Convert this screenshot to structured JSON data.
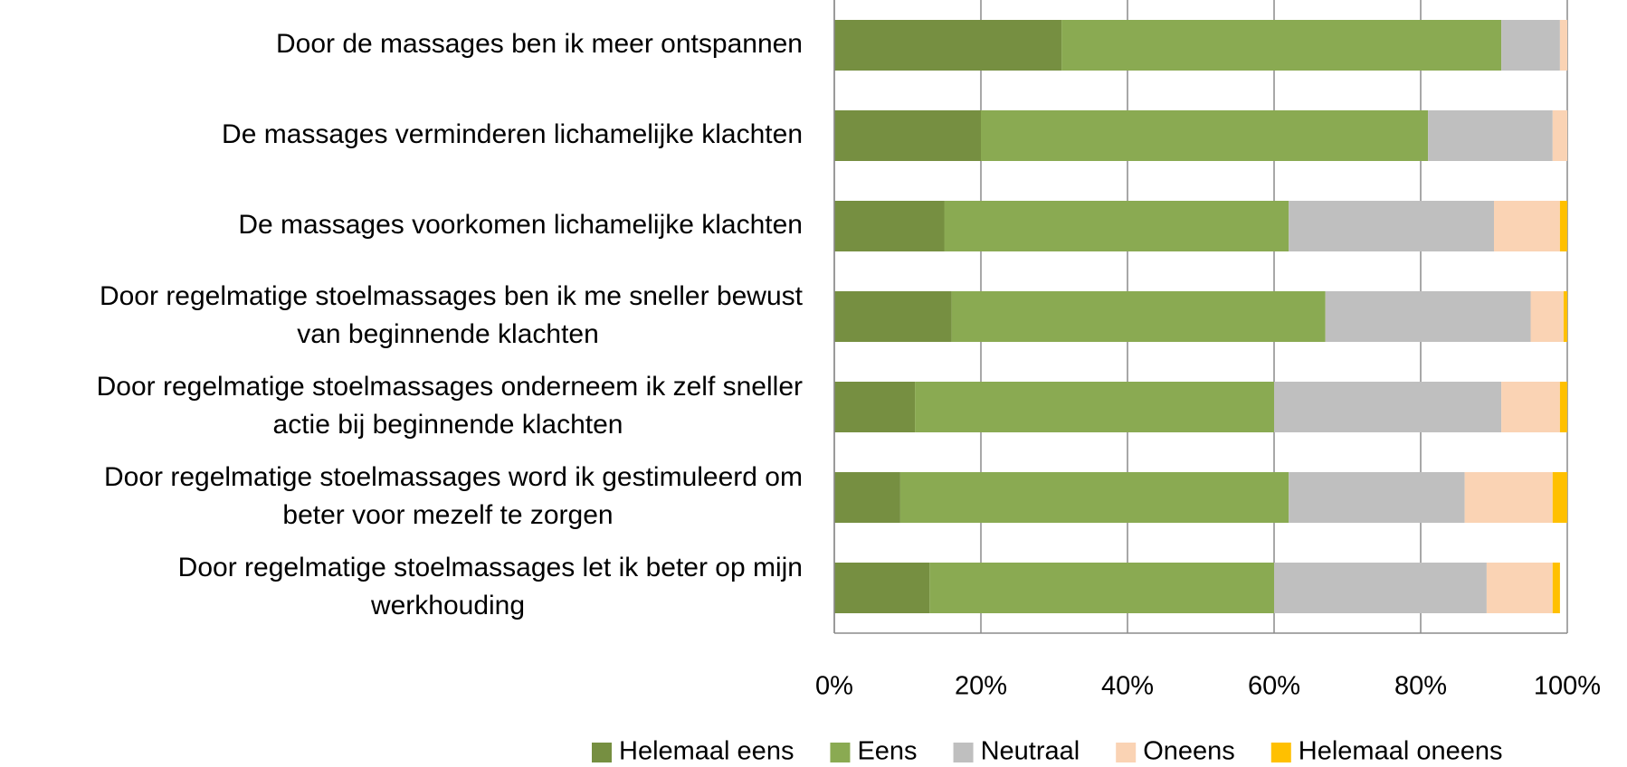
{
  "chart_data": {
    "type": "stacked-barh",
    "categories": [
      "Door de massages ben ik meer ontspannen",
      "De massages verminderen lichamelijke klachten",
      "De massages voorkomen lichamelijke klachten",
      "Door regelmatige stoelmassages ben ik me sneller bewust\nvan beginnende klachten",
      "Door regelmatige stoelmassages onderneem ik zelf sneller\nactie bij beginnende klachten",
      "Door regelmatige stoelmassages word ik gestimuleerd om\nbeter voor mezelf te zorgen",
      "Door regelmatige stoelmassages let ik beter op mijn\nwerkhouding"
    ],
    "series": [
      {
        "name": "Helemaal eens",
        "color": "#768f41",
        "values": [
          31,
          20,
          15,
          16,
          11,
          9,
          13
        ]
      },
      {
        "name": "Eens",
        "color": "#8aaa52",
        "values": [
          60,
          61,
          47,
          51,
          49,
          53,
          47
        ]
      },
      {
        "name": "Neutraal",
        "color": "#bfbfbf",
        "values": [
          8,
          17,
          28,
          28,
          31,
          24,
          29
        ]
      },
      {
        "name": "Oneens",
        "color": "#fad3b4",
        "values": [
          1,
          2,
          9,
          4.5,
          8,
          12,
          9
        ]
      },
      {
        "name": "Helemaal oneens",
        "color": "#ffc000",
        "values": [
          0,
          0,
          1,
          0.5,
          1,
          2,
          1
        ]
      }
    ],
    "xlim": [
      0,
      100
    ],
    "xticks": [
      {
        "value": 0,
        "label": "0%"
      },
      {
        "value": 20,
        "label": "20%"
      },
      {
        "value": 40,
        "label": "40%"
      },
      {
        "value": 60,
        "label": "60%"
      },
      {
        "value": 80,
        "label": "80%"
      },
      {
        "value": 100,
        "label": "100%"
      }
    ],
    "grid": true,
    "legend": "bottom"
  }
}
